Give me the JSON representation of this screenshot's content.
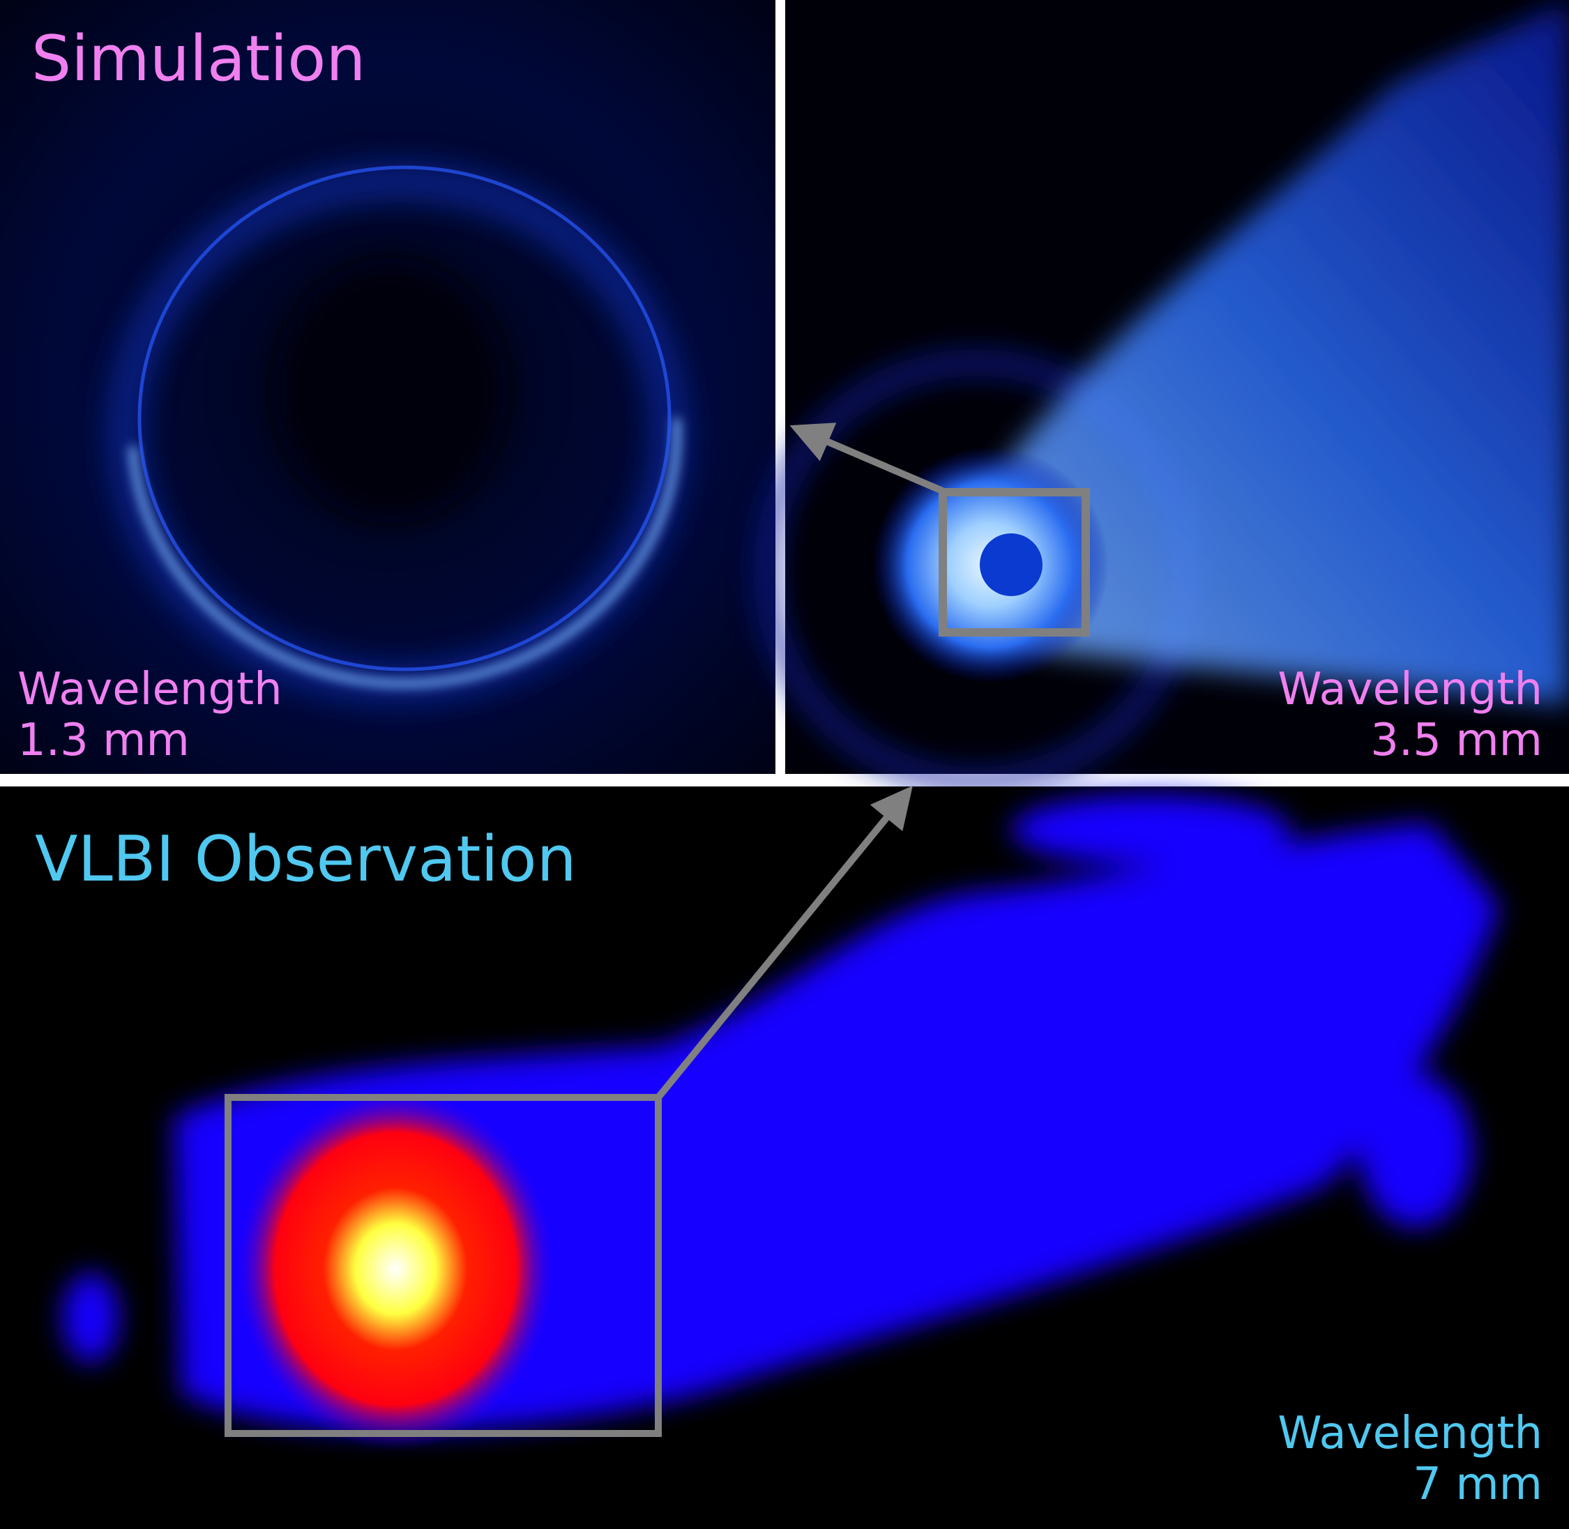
{
  "panels": [
    {
      "title": "Simulation",
      "caption": [
        "Wavelength",
        "1.3 mm"
      ]
    },
    {
      "caption": [
        "Wavelength",
        "3.5 mm"
      ]
    },
    {
      "title": "VLBI Observation",
      "caption": [
        "Wavelength",
        "7 mm"
      ]
    }
  ]
}
